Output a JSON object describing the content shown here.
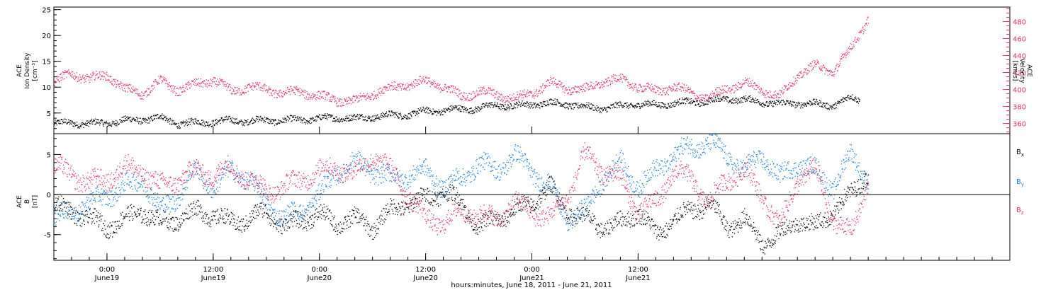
{
  "colors": {
    "black": "#000000",
    "pink": "#e0336a",
    "blue": "#1a7fd4"
  },
  "chart_data": [
    {
      "type": "scatter",
      "panel": "top",
      "ylabel_left": [
        "ACE",
        "Ion Density",
        "[cm⁻³]"
      ],
      "ylabel_right": [
        "ACE",
        "Velocity",
        "[km/s]"
      ],
      "y_left_ticks": [
        "5",
        "10",
        "15",
        "20",
        "25"
      ],
      "y_left_range": [
        1,
        25.5
      ],
      "y_right_ticks": [
        "360",
        "380",
        "400",
        "420",
        "440",
        "460",
        "480"
      ],
      "y_right_range": [
        348,
        497
      ],
      "series": [
        {
          "name": "Ion Density",
          "axis": "left",
          "color": "#000000",
          "x_hours": [
            0,
            2,
            4,
            6,
            8,
            10,
            12,
            14,
            16,
            18,
            20,
            22,
            24,
            26,
            28,
            30,
            32,
            34,
            36,
            38,
            40,
            42,
            44,
            46,
            48,
            50,
            52,
            54,
            56,
            58,
            60,
            62,
            64,
            66,
            68,
            70,
            72,
            74,
            76,
            78,
            80,
            82,
            84,
            86,
            88,
            90,
            91
          ],
          "values": [
            3.0,
            3.2,
            3.0,
            3.2,
            3.6,
            3.8,
            4.2,
            3.0,
            3.2,
            3.4,
            3.6,
            3.5,
            3.7,
            3.6,
            3.8,
            4.0,
            4.2,
            4.0,
            4.4,
            4.6,
            4.8,
            5.4,
            5.6,
            5.8,
            6.0,
            6.6,
            6.4,
            6.8,
            7.0,
            6.8,
            6.2,
            6.0,
            6.4,
            6.8,
            6.6,
            7.0,
            7.2,
            7.4,
            7.8,
            7.6,
            7.2,
            6.8,
            7.0,
            6.8,
            6.6,
            8.0,
            7.6
          ]
        },
        {
          "name": "Velocity",
          "axis": "right",
          "color": "#e0336a",
          "x_hours": [
            0,
            2,
            4,
            6,
            8,
            10,
            12,
            14,
            16,
            18,
            20,
            22,
            24,
            26,
            28,
            30,
            32,
            34,
            36,
            38,
            40,
            42,
            44,
            46,
            48,
            50,
            52,
            54,
            56,
            58,
            60,
            62,
            64,
            66,
            68,
            70,
            72,
            74,
            76,
            78,
            80,
            82,
            84,
            86,
            88,
            90,
            92
          ],
          "values": [
            408,
            420,
            412,
            418,
            400,
            396,
            410,
            400,
            406,
            412,
            398,
            404,
            400,
            396,
            398,
            392,
            388,
            386,
            396,
            402,
            406,
            410,
            404,
            392,
            398,
            394,
            390,
            396,
            408,
            402,
            400,
            410,
            412,
            404,
            398,
            404,
            396,
            390,
            402,
            408,
            400,
            392,
            418,
            428,
            422,
            448,
            485
          ]
        }
      ]
    },
    {
      "type": "scatter",
      "panel": "bottom",
      "ylabel_left": [
        "ACE",
        "B",
        "[nT]"
      ],
      "y_ticks": [
        "-5",
        "0",
        "5"
      ],
      "y_range": [
        -8.2,
        7.6
      ],
      "legend": [
        "Bx",
        "By",
        "Bz"
      ],
      "series": [
        {
          "name": "Bx",
          "color": "#000000",
          "x_hours": [
            0,
            2,
            4,
            6,
            8,
            10,
            12,
            14,
            16,
            18,
            20,
            22,
            24,
            26,
            28,
            30,
            32,
            34,
            36,
            38,
            40,
            42,
            44,
            46,
            48,
            50,
            52,
            54,
            56,
            58,
            60,
            62,
            64,
            66,
            68,
            70,
            72,
            74,
            76,
            78,
            80,
            82,
            84,
            86,
            88,
            90,
            92
          ],
          "values": [
            -1.5,
            -2.0,
            -3.0,
            -4.0,
            -3.0,
            -2.0,
            -3.5,
            -3.0,
            -2.0,
            -2.5,
            -3.5,
            -3.0,
            -2.0,
            -4.0,
            -3.0,
            -2.5,
            -3.5,
            -3.0,
            -4.0,
            -2.0,
            -1.0,
            -0.5,
            0.5,
            -1.0,
            -4.0,
            -3.0,
            -2.0,
            -1.0,
            1.0,
            -2.0,
            -3.0,
            -4.0,
            -3.5,
            -2.0,
            -5.0,
            -3.0,
            -2.0,
            -1.0,
            -4.0,
            -3.0,
            -6.0,
            -5.0,
            -3.0,
            -4.0,
            -2.0,
            0.0,
            3.0
          ]
        },
        {
          "name": "By",
          "color": "#1a7fd4",
          "x_hours": [
            0,
            2,
            4,
            6,
            8,
            10,
            12,
            14,
            16,
            18,
            20,
            22,
            24,
            26,
            28,
            30,
            32,
            34,
            36,
            38,
            40,
            42,
            44,
            46,
            48,
            50,
            52,
            54,
            56,
            58,
            60,
            62,
            64,
            66,
            68,
            70,
            72,
            74,
            76,
            78,
            80,
            82,
            84,
            86,
            88,
            90,
            92
          ],
          "values": [
            -3.0,
            -2.0,
            -1.0,
            0.0,
            1.0,
            2.0,
            -2.0,
            0.0,
            3.0,
            1.0,
            3.0,
            2.0,
            -1.0,
            -3.0,
            -2.0,
            0.0,
            3.0,
            4.0,
            3.0,
            2.0,
            2.5,
            3.0,
            1.0,
            2.0,
            4.0,
            3.0,
            5.0,
            3.0,
            1.0,
            -3.0,
            -2.0,
            2.0,
            4.0,
            1.0,
            3.0,
            5.0,
            6.0,
            6.5,
            5.0,
            3.0,
            5.0,
            2.0,
            4.0,
            3.0,
            1.0,
            5.0,
            2.0
          ]
        },
        {
          "name": "Bz",
          "color": "#e0336a",
          "x_hours": [
            0,
            2,
            4,
            6,
            8,
            10,
            12,
            14,
            16,
            18,
            20,
            22,
            24,
            26,
            28,
            30,
            32,
            34,
            36,
            38,
            40,
            42,
            44,
            46,
            48,
            50,
            52,
            54,
            56,
            58,
            60,
            62,
            64,
            66,
            68,
            70,
            72,
            74,
            76,
            78,
            80,
            82,
            84,
            86,
            88,
            90,
            92
          ],
          "values": [
            3.5,
            2.5,
            1.5,
            2.0,
            3.5,
            3.0,
            1.0,
            2.0,
            3.0,
            2.5,
            3.5,
            2.0,
            0.5,
            1.0,
            2.0,
            3.0,
            3.5,
            2.5,
            5.0,
            3.0,
            0.0,
            -3.0,
            -3.5,
            -2.0,
            -2.5,
            -3.0,
            -1.0,
            -2.0,
            -3.0,
            0.0,
            5.0,
            3.0,
            2.0,
            -2.0,
            -1.0,
            3.0,
            2.0,
            -1.0,
            2.0,
            3.0,
            0.0,
            -4.0,
            2.0,
            3.0,
            -3.0,
            -5.0,
            2.0
          ]
        }
      ]
    }
  ],
  "x_axis": {
    "tick_labels_top": [
      "0:00",
      "12:00",
      "0:00",
      "12:00",
      "0:00",
      "12:00"
    ],
    "tick_labels_bottom": [
      "June19",
      "June19",
      "June20",
      "June20",
      "June21",
      "June21"
    ],
    "title": "hours:minutes, June 18, 2011 - June 21, 2011",
    "range_hours": [
      0,
      108
    ]
  },
  "legend_labels": {
    "bx_main": "B",
    "bx_sub": "x",
    "by_main": "B",
    "by_sub": "y",
    "bz_main": "B",
    "bz_sub": "z"
  }
}
